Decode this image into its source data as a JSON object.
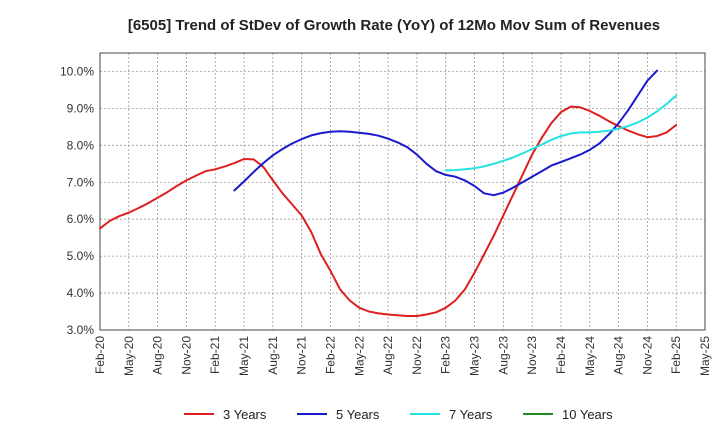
{
  "chart_data": {
    "type": "line",
    "title": "[6505]  Trend of StDev of Growth Rate (YoY) of 12Mo Mov Sum of Revenues",
    "xlabel": "",
    "ylabel": "",
    "ylim": [
      3.0,
      10.5
    ],
    "grid": true,
    "legend_position": "bottom",
    "y_ticks": [
      3.0,
      4.0,
      5.0,
      6.0,
      7.0,
      8.0,
      9.0,
      10.0
    ],
    "y_tick_labels": [
      "3.0%",
      "4.0%",
      "5.0%",
      "6.0%",
      "7.0%",
      "8.0%",
      "9.0%",
      "10.0%"
    ],
    "x_ticks": [
      "Feb-20",
      "May-20",
      "Aug-20",
      "Nov-20",
      "Feb-21",
      "May-21",
      "Aug-21",
      "Nov-21",
      "Feb-22",
      "May-22",
      "Aug-22",
      "Nov-22",
      "Feb-23",
      "May-23",
      "Aug-23",
      "Nov-23",
      "Feb-24",
      "May-24",
      "Aug-24",
      "Nov-24",
      "Feb-25",
      "May-25"
    ],
    "x_range": [
      0,
      63
    ],
    "series": [
      {
        "name": "3 Years",
        "color": "#dd1f1f",
        "x": [
          0,
          1,
          2,
          3,
          4,
          5,
          6,
          7,
          8,
          9,
          10,
          11,
          12,
          13,
          14,
          15,
          16,
          17,
          18,
          19,
          20,
          21,
          22,
          23,
          24,
          25,
          26,
          27,
          28,
          29,
          30,
          31,
          32,
          33,
          34,
          35,
          36,
          37,
          38,
          39,
          40,
          41,
          42,
          43,
          44,
          45,
          46,
          47,
          48,
          49,
          50,
          51,
          52,
          53,
          54,
          55,
          56,
          57,
          58,
          59,
          60
        ],
        "values": [
          5.75,
          5.95,
          6.08,
          6.18,
          6.3,
          6.43,
          6.58,
          6.73,
          6.9,
          7.05,
          7.18,
          7.3,
          7.35,
          7.43,
          7.52,
          7.63,
          7.62,
          7.42,
          7.05,
          6.7,
          6.4,
          6.1,
          5.65,
          5.05,
          4.6,
          4.1,
          3.8,
          3.6,
          3.5,
          3.45,
          3.42,
          3.4,
          3.38,
          3.38,
          3.42,
          3.48,
          3.6,
          3.8,
          4.1,
          4.55,
          5.05,
          5.55,
          6.1,
          6.65,
          7.2,
          7.75,
          8.2,
          8.6,
          8.9,
          9.05,
          9.03,
          8.93,
          8.8,
          8.65,
          8.52,
          8.4,
          8.3,
          8.22,
          8.25,
          8.35,
          8.55
        ]
      },
      {
        "name": "5 Years",
        "color": "#1a1acc",
        "x": [
          14,
          15,
          16,
          17,
          18,
          19,
          20,
          21,
          22,
          23,
          24,
          25,
          26,
          27,
          28,
          29,
          30,
          31,
          32,
          33,
          34,
          35,
          36,
          37,
          38,
          39,
          40,
          41,
          42,
          43,
          44,
          45,
          46,
          47,
          48,
          49,
          50,
          51,
          52,
          53,
          54,
          55,
          56,
          57,
          58,
          59,
          60
        ],
        "values": [
          6.78,
          7.02,
          7.28,
          7.52,
          7.73,
          7.9,
          8.05,
          8.17,
          8.27,
          8.33,
          8.37,
          8.38,
          8.37,
          8.34,
          8.31,
          8.26,
          8.18,
          8.08,
          7.95,
          7.75,
          7.5,
          7.3,
          7.2,
          7.15,
          7.05,
          6.9,
          6.7,
          6.65,
          6.72,
          6.85,
          7.0,
          7.15,
          7.3,
          7.45,
          7.55,
          7.65,
          7.75,
          7.88,
          8.05,
          8.3,
          8.6,
          8.95,
          9.35,
          9.75,
          10.02,
          null,
          null
        ]
      },
      {
        "name": "7 Years",
        "color": "#22e2e2",
        "x": [
          36,
          37,
          38,
          39,
          40,
          41,
          42,
          43,
          44,
          45,
          46,
          47,
          48,
          49,
          50,
          51,
          52,
          53,
          54,
          55,
          56,
          57,
          58,
          59,
          60
        ],
        "values": [
          7.32,
          7.33,
          7.35,
          7.38,
          7.43,
          7.5,
          7.58,
          7.67,
          7.78,
          7.9,
          8.02,
          8.15,
          8.25,
          8.32,
          8.35,
          8.35,
          8.37,
          8.4,
          8.45,
          8.52,
          8.62,
          8.75,
          8.92,
          9.12,
          9.35
        ]
      },
      {
        "name": "10 Years",
        "color": "#228b22",
        "x": [],
        "values": []
      }
    ]
  }
}
